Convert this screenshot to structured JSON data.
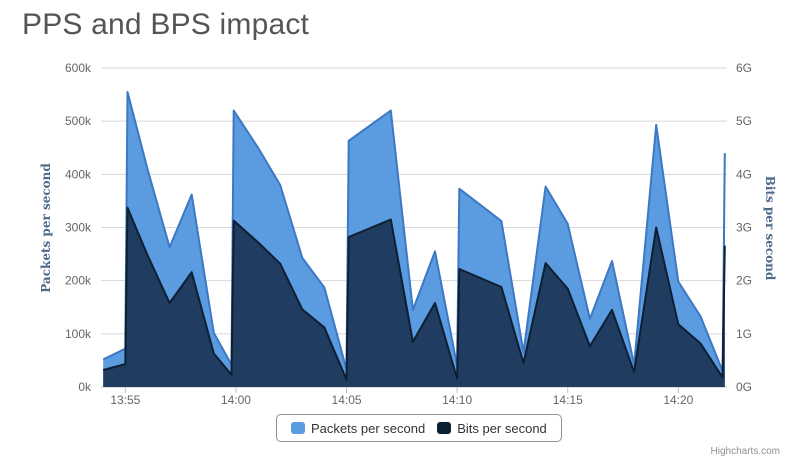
{
  "chart_data": {
    "type": "area",
    "title": "PPS and BPS impact",
    "x_tick_labels": [
      "13:55",
      "14:00",
      "14:05",
      "14:10",
      "14:15",
      "14:20"
    ],
    "x_tick_minutes": [
      55,
      60,
      65,
      70,
      75,
      80
    ],
    "x_range_minutes": [
      53.9,
      82.2
    ],
    "y_left": {
      "label": "Packets per second",
      "ticks": [
        "0k",
        "100k",
        "200k",
        "300k",
        "400k",
        "500k",
        "600k"
      ],
      "range": [
        0,
        600000
      ]
    },
    "y_right": {
      "label": "Bits per second",
      "ticks": [
        "0G",
        "1G",
        "2G",
        "3G",
        "4G",
        "5G",
        "6G"
      ],
      "range": [
        0,
        6000000000
      ]
    },
    "grid": true,
    "legend_position": "bottom-center",
    "series": [
      {
        "name": "Packets per second",
        "axis": "left",
        "color": "#5b9be0",
        "line_color": "#3d78c4",
        "points": [
          [
            54.0,
            52000
          ],
          [
            55.0,
            72000
          ],
          [
            55.1,
            555000
          ],
          [
            56.0,
            410000
          ],
          [
            57.0,
            263000
          ],
          [
            58.0,
            362000
          ],
          [
            59.0,
            102000
          ],
          [
            59.8,
            42000
          ],
          [
            59.9,
            520000
          ],
          [
            61.0,
            450000
          ],
          [
            62.0,
            380000
          ],
          [
            63.0,
            243000
          ],
          [
            64.0,
            187000
          ],
          [
            65.0,
            33000
          ],
          [
            65.1,
            463000
          ],
          [
            67.0,
            520000
          ],
          [
            68.0,
            145000
          ],
          [
            69.0,
            255000
          ],
          [
            70.0,
            40000
          ],
          [
            70.1,
            373000
          ],
          [
            72.0,
            312000
          ],
          [
            73.0,
            65000
          ],
          [
            74.0,
            377000
          ],
          [
            75.0,
            307000
          ],
          [
            76.0,
            128000
          ],
          [
            77.0,
            237000
          ],
          [
            78.0,
            42000
          ],
          [
            79.0,
            493000
          ],
          [
            80.0,
            198000
          ],
          [
            81.0,
            133000
          ],
          [
            82.0,
            30000
          ],
          [
            82.1,
            440000
          ]
        ]
      },
      {
        "name": "Bits per second",
        "axis": "right",
        "color": "#1d3557",
        "line_color": "#0d1f33",
        "points": [
          [
            54.0,
            320000000
          ],
          [
            55.0,
            430000000
          ],
          [
            55.1,
            3370000000
          ],
          [
            56.0,
            2480000000
          ],
          [
            57.0,
            1580000000
          ],
          [
            58.0,
            2160000000
          ],
          [
            59.0,
            630000000
          ],
          [
            59.8,
            230000000
          ],
          [
            59.9,
            3130000000
          ],
          [
            61.0,
            2720000000
          ],
          [
            62.0,
            2320000000
          ],
          [
            63.0,
            1460000000
          ],
          [
            64.0,
            1120000000
          ],
          [
            65.0,
            140000000
          ],
          [
            65.1,
            2820000000
          ],
          [
            67.0,
            3150000000
          ],
          [
            68.0,
            850000000
          ],
          [
            69.0,
            1580000000
          ],
          [
            70.0,
            160000000
          ],
          [
            70.1,
            2220000000
          ],
          [
            72.0,
            1880000000
          ],
          [
            73.0,
            450000000
          ],
          [
            74.0,
            2330000000
          ],
          [
            75.0,
            1850000000
          ],
          [
            76.0,
            770000000
          ],
          [
            77.0,
            1450000000
          ],
          [
            78.0,
            280000000
          ],
          [
            79.0,
            3000000000
          ],
          [
            80.0,
            1180000000
          ],
          [
            81.0,
            820000000
          ],
          [
            82.0,
            180000000
          ],
          [
            82.1,
            2660000000
          ]
        ]
      }
    ]
  },
  "credits": "Highcharts.com"
}
